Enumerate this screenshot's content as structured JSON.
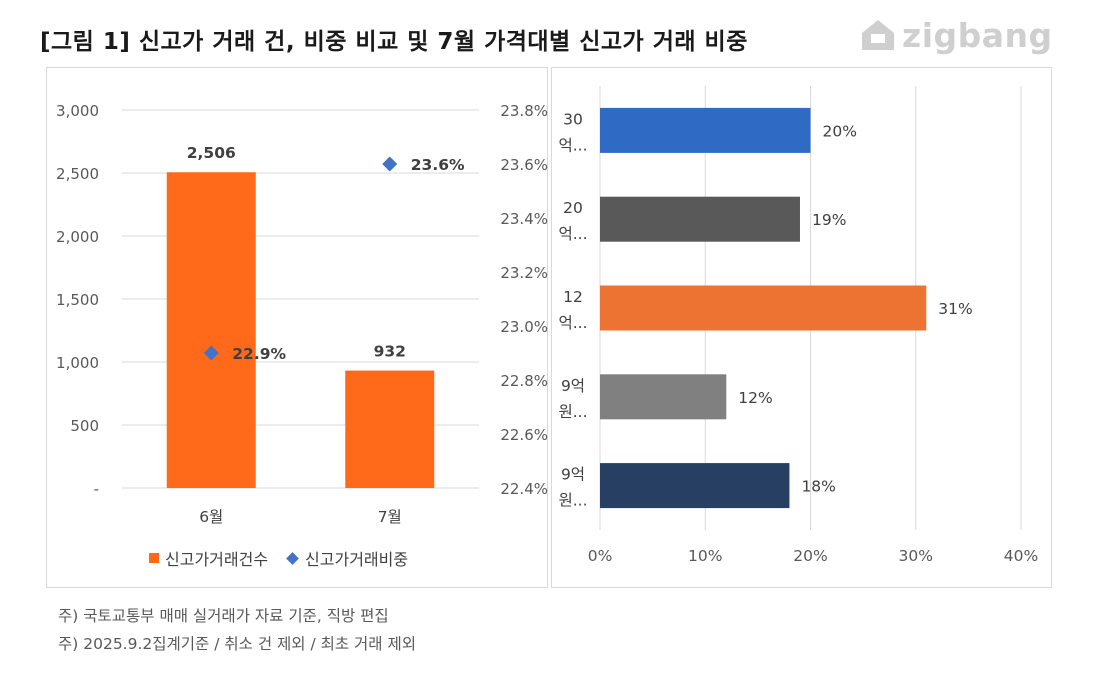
{
  "header": {
    "title": "[그림 1] 신고가 거래 건, 비중 비교 및 7월 가격대별 신고가 거래 비중",
    "logo_text": "zigbang"
  },
  "notes": [
    "주) 국토교통부 매매 실거래가 자료 기준, 직방 편집",
    "주) 2025.9.2집계기준 / 취소 건 제외  / 최초 거래 제외"
  ],
  "colors": {
    "bar_orange": "#FF6A1A",
    "marker_blue": "#4472C4",
    "logo_gray": "#cfcfcf"
  },
  "chart_data": [
    {
      "type": "bar",
      "categories": [
        "6월",
        "7월"
      ],
      "series": [
        {
          "name": "신고가거래건수",
          "type": "bar",
          "axis": "left",
          "values": [
            2506,
            932
          ],
          "labels": [
            "2,506",
            "932"
          ],
          "color": "#FF6A1A"
        },
        {
          "name": "신고가거래비중",
          "type": "scatter",
          "axis": "right",
          "values": [
            22.9,
            23.6
          ],
          "labels": [
            "22.9%",
            "23.6%"
          ],
          "color": "#4472C4"
        }
      ],
      "y_left": {
        "ylim": [
          0,
          3000
        ],
        "ticks": [
          0,
          500,
          1000,
          1500,
          2000,
          2500,
          3000
        ],
        "tick_labels": [
          "-",
          "500",
          "1,000",
          "1,500",
          "2,000",
          "2,500",
          "3,000"
        ]
      },
      "y_right": {
        "ylim": [
          22.4,
          23.8
        ],
        "ticks": [
          22.4,
          22.6,
          22.8,
          23.0,
          23.2,
          23.4,
          23.6,
          23.8
        ],
        "tick_labels": [
          "22.4%",
          "22.6%",
          "22.8%",
          "23.0%",
          "23.2%",
          "23.4%",
          "23.6%",
          "23.8%"
        ]
      },
      "grid": true,
      "legend": "bottom"
    },
    {
      "type": "bar",
      "orientation": "horizontal",
      "categories": [
        {
          "line1": "30",
          "line2": "억..."
        },
        {
          "line1": "20",
          "line2": "억..."
        },
        {
          "line1": "12",
          "line2": "억..."
        },
        {
          "line1": "9억",
          "line2": "원..."
        },
        {
          "line1": "9억",
          "line2": "원..."
        }
      ],
      "values": [
        20,
        19,
        31,
        12,
        18
      ],
      "labels": [
        "20%",
        "19%",
        "31%",
        "12%",
        "18%"
      ],
      "colors": [
        "#2F6BC4",
        "#595959",
        "#ED7332",
        "#808080",
        "#263F63"
      ],
      "xlim": [
        0,
        40
      ],
      "x_ticks": [
        0,
        10,
        20,
        30,
        40
      ],
      "x_tick_labels": [
        "0%",
        "10%",
        "20%",
        "30%",
        "40%"
      ],
      "grid": true
    }
  ]
}
